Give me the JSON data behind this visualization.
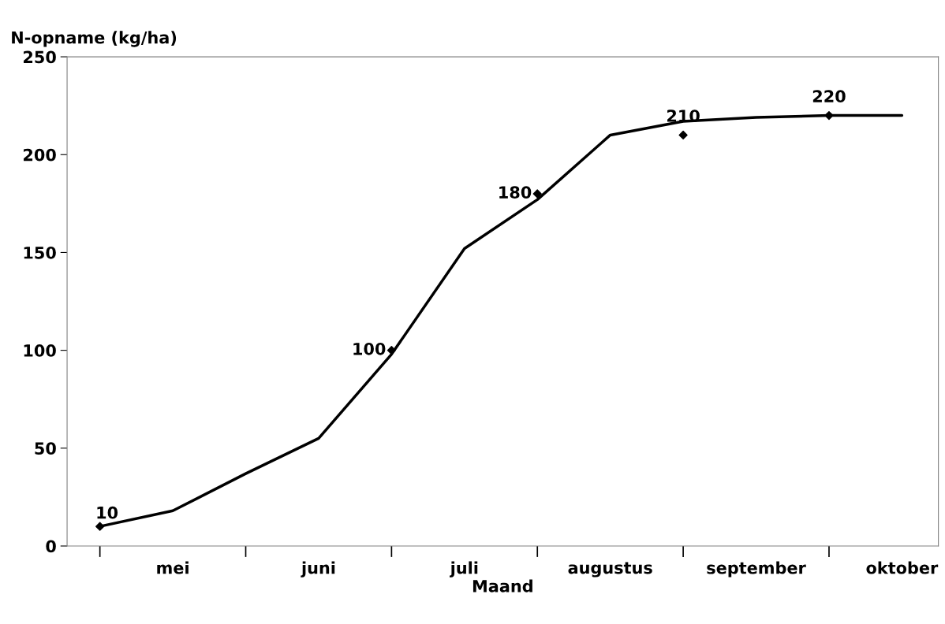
{
  "chart_data": {
    "type": "line",
    "xlabel": "Maand",
    "ylabel": "N-opname (kg/ha)",
    "categories": [
      null,
      "mei",
      null,
      "juni",
      null,
      "juli",
      null,
      "augustus",
      null,
      "september",
      null,
      "oktober"
    ],
    "ylim": [
      0,
      250
    ],
    "yticks": [
      0,
      50,
      100,
      150,
      200,
      250
    ],
    "grid": false,
    "series": [
      {
        "color": "#000000",
        "marker": "none",
        "line_style": "solid",
        "values": [
          10,
          18,
          37,
          55,
          98,
          152,
          177,
          210,
          217,
          219,
          220,
          220
        ]
      },
      {
        "type": "scatter",
        "color": "#000000",
        "marker": "diamond",
        "values": [
          10,
          null,
          null,
          null,
          100,
          null,
          180,
          null,
          210,
          null,
          220,
          null
        ],
        "value_labels": [
          "10",
          null,
          null,
          null,
          "100",
          null,
          "180",
          null,
          "210",
          null,
          "220",
          null
        ]
      }
    ]
  }
}
